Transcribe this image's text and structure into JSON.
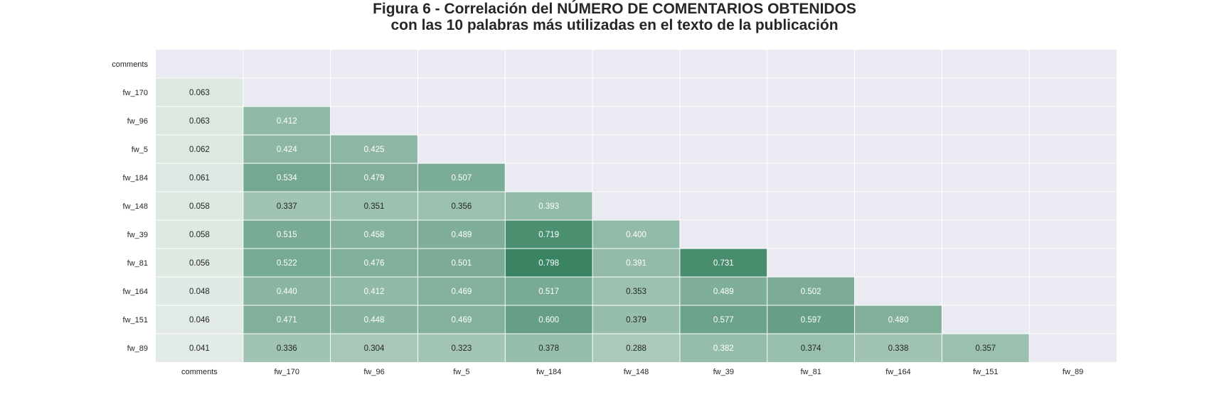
{
  "chart_data": {
    "type": "heatmap",
    "title": [
      "Figura 6 - Correlación del NÚMERO DE COMENTARIOS OBTENIDOS",
      "con las 10 palabras más utilizadas en el texto de la publicación"
    ],
    "x_labels": [
      "comments",
      "fw_170",
      "fw_96",
      "fw_5",
      "fw_184",
      "fw_148",
      "fw_39",
      "fw_81",
      "fw_164",
      "fw_151",
      "fw_89"
    ],
    "y_labels": [
      "comments",
      "fw_170",
      "fw_96",
      "fw_5",
      "fw_184",
      "fw_148",
      "fw_39",
      "fw_81",
      "fw_164",
      "fw_151",
      "fw_89"
    ],
    "mask": "upper-triangle-including-diagonal",
    "values": [
      [
        null,
        null,
        null,
        null,
        null,
        null,
        null,
        null,
        null,
        null,
        null
      ],
      [
        0.063,
        null,
        null,
        null,
        null,
        null,
        null,
        null,
        null,
        null,
        null
      ],
      [
        0.063,
        0.412,
        null,
        null,
        null,
        null,
        null,
        null,
        null,
        null,
        null
      ],
      [
        0.062,
        0.424,
        0.425,
        null,
        null,
        null,
        null,
        null,
        null,
        null,
        null
      ],
      [
        0.061,
        0.534,
        0.479,
        0.507,
        null,
        null,
        null,
        null,
        null,
        null,
        null
      ],
      [
        0.058,
        0.337,
        0.351,
        0.356,
        0.393,
        null,
        null,
        null,
        null,
        null,
        null
      ],
      [
        0.058,
        0.515,
        0.458,
        0.489,
        0.719,
        0.4,
        null,
        null,
        null,
        null,
        null
      ],
      [
        0.056,
        0.522,
        0.476,
        0.501,
        0.798,
        0.391,
        0.731,
        null,
        null,
        null,
        null
      ],
      [
        0.048,
        0.44,
        0.412,
        0.469,
        0.517,
        0.353,
        0.489,
        0.502,
        null,
        null,
        null
      ],
      [
        0.046,
        0.471,
        0.448,
        0.469,
        0.6,
        0.379,
        0.577,
        0.597,
        0.48,
        null,
        null
      ],
      [
        0.041,
        0.336,
        0.304,
        0.323,
        0.378,
        0.288,
        0.382,
        0.374,
        0.338,
        0.357,
        null
      ]
    ],
    "number_format": "3 decimals",
    "colormap": {
      "low": "#e2ebe5",
      "high": "#3a8464"
    },
    "background_color": "#eaeaf2",
    "grid_color": "#ffffff",
    "colorbar": false
  }
}
